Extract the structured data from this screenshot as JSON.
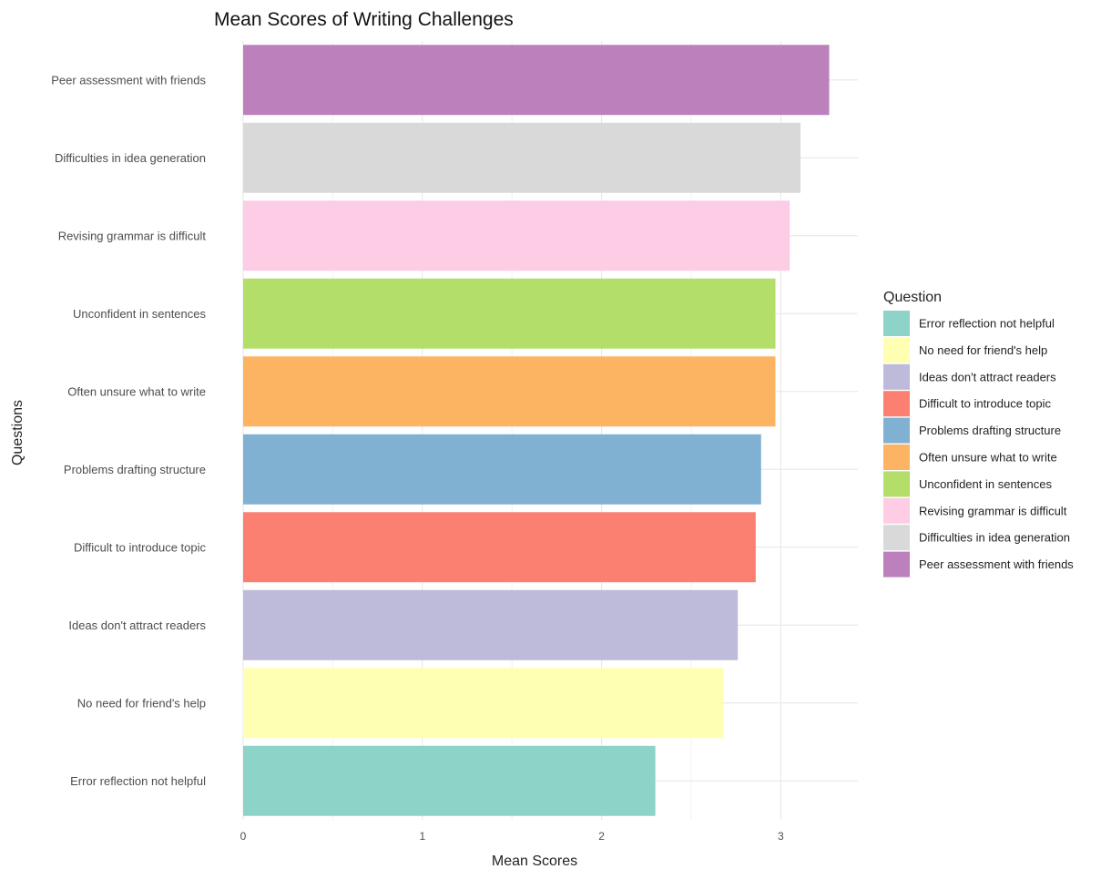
{
  "chart_data": {
    "type": "bar",
    "orientation": "horizontal",
    "title": "Mean Scores of Writing Challenges",
    "xlabel": "Mean Scores",
    "ylabel": "Questions",
    "categories": [
      "Error reflection not helpful",
      "No need for friend's help",
      "Ideas don't attract readers",
      "Difficult to introduce topic",
      "Problems drafting structure",
      "Often unsure what to write",
      "Unconfident in sentences",
      "Revising grammar is difficult",
      "Difficulties in idea generation",
      "Peer assessment with friends"
    ],
    "values": [
      2.3,
      2.68,
      2.76,
      2.86,
      2.89,
      2.97,
      2.97,
      3.05,
      3.11,
      3.27
    ],
    "colors": [
      "#8dd3c7",
      "#ffffb3",
      "#bebada",
      "#fb8072",
      "#80b1d3",
      "#fdb462",
      "#b3de69",
      "#fccde5",
      "#d9d9d9",
      "#bc80bd"
    ],
    "xticks": [
      0,
      1,
      2,
      3
    ],
    "xlim": [
      0,
      3.43
    ],
    "grid": true,
    "legend": {
      "title": "Question",
      "position": "right",
      "items": [
        "Error reflection not helpful",
        "No need for friend's help",
        "Ideas don't attract readers",
        "Difficult to introduce topic",
        "Problems drafting structure",
        "Often unsure what to write",
        "Unconfident in sentences",
        "Revising grammar is difficult",
        "Difficulties in idea generation",
        "Peer assessment with friends"
      ]
    }
  }
}
